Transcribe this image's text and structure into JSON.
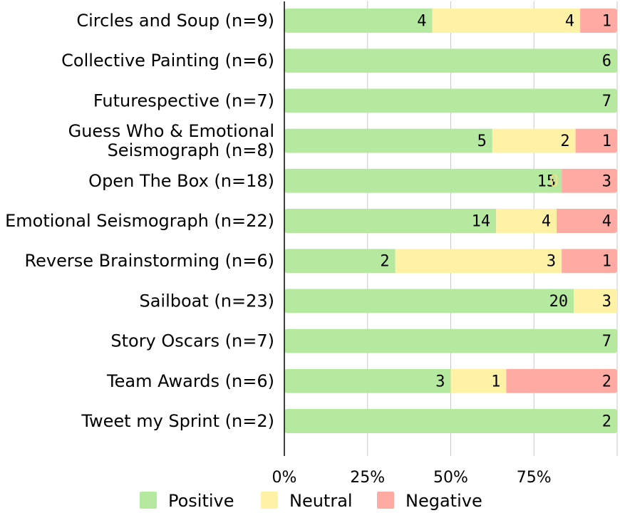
{
  "chart_data": {
    "type": "bar",
    "orientation": "horizontal",
    "stacked": "percent",
    "title": "",
    "xlabel": "",
    "ylabel": "",
    "xlim": [
      0,
      100
    ],
    "x_ticks": [
      "0%",
      "25%",
      "50%",
      "75%"
    ],
    "x_tick_values": [
      0,
      25,
      50,
      75
    ],
    "grid": true,
    "legend_position": "bottom",
    "categories": [
      "Circles and Soup (n=9)",
      "Collective Painting (n=6)",
      "Futurespective (n=7)",
      "Guess Who & Emotional Seismograph (n=8)",
      "Open The Box (n=18)",
      "Emotional Seismograph (n=22)",
      "Reverse Brainstorming (n=6)",
      "Sailboat (n=23)",
      "Story Oscars (n=7)",
      "Team Awards (n=6)",
      "Tweet my Sprint (n=2)"
    ],
    "category_lines": [
      [
        "Circles and Soup (n=9)"
      ],
      [
        "Collective Painting (n=6)"
      ],
      [
        "Futurespective (n=7)"
      ],
      [
        "Guess Who & Emotional",
        "Seismograph (n=8)"
      ],
      [
        "Open The Box (n=18)"
      ],
      [
        "Emotional Seismograph (n=22)"
      ],
      [
        "Reverse Brainstorming (n=6)"
      ],
      [
        "Sailboat (n=23)"
      ],
      [
        "Story Oscars (n=7)"
      ],
      [
        "Team Awards (n=6)"
      ],
      [
        "Tweet my Sprint (n=2)"
      ]
    ],
    "series": [
      {
        "name": "Positive",
        "color": "#b5e9a0",
        "values": [
          4,
          6,
          7,
          5,
          15,
          14,
          2,
          20,
          7,
          3,
          2
        ]
      },
      {
        "name": "Neutral",
        "color": "#fff1a6",
        "values": [
          4,
          0,
          0,
          2,
          0,
          4,
          3,
          3,
          0,
          1,
          0
        ]
      },
      {
        "name": "Negative",
        "color": "#ffaaa3",
        "values": [
          1,
          0,
          0,
          1,
          3,
          4,
          1,
          0,
          0,
          2,
          0
        ]
      }
    ],
    "value_label_color": "#000000",
    "zero_label_color": "#f2e08a"
  }
}
